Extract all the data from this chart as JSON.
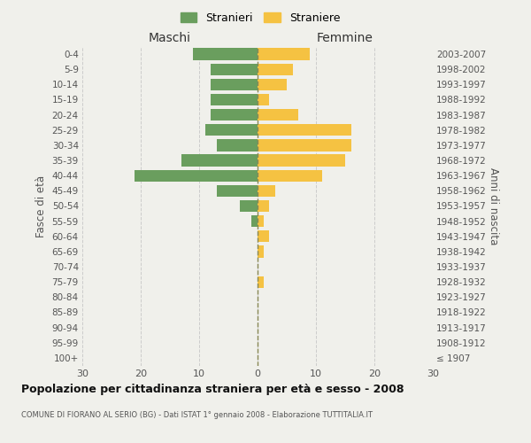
{
  "age_groups": [
    "100+",
    "95-99",
    "90-94",
    "85-89",
    "80-84",
    "75-79",
    "70-74",
    "65-69",
    "60-64",
    "55-59",
    "50-54",
    "45-49",
    "40-44",
    "35-39",
    "30-34",
    "25-29",
    "20-24",
    "15-19",
    "10-14",
    "5-9",
    "0-4"
  ],
  "birth_years": [
    "≤ 1907",
    "1908-1912",
    "1913-1917",
    "1918-1922",
    "1923-1927",
    "1928-1932",
    "1933-1937",
    "1938-1942",
    "1943-1947",
    "1948-1952",
    "1953-1957",
    "1958-1962",
    "1963-1967",
    "1968-1972",
    "1973-1977",
    "1978-1982",
    "1983-1987",
    "1988-1992",
    "1993-1997",
    "1998-2002",
    "2003-2007"
  ],
  "males": [
    0,
    0,
    0,
    0,
    0,
    0,
    0,
    0,
    0,
    1,
    3,
    7,
    21,
    13,
    7,
    9,
    8,
    8,
    8,
    8,
    11
  ],
  "females": [
    0,
    0,
    0,
    0,
    0,
    1,
    0,
    1,
    2,
    1,
    2,
    3,
    11,
    15,
    16,
    16,
    7,
    2,
    5,
    6,
    9
  ],
  "male_color": "#6a9e5e",
  "female_color": "#f5c242",
  "center_line_color": "#888855",
  "bg_color": "#f0f0eb",
  "grid_color": "#cccccc",
  "title": "Popolazione per cittadinanza straniera per età e sesso - 2008",
  "subtitle": "COMUNE DI FIORANO AL SERIO (BG) - Dati ISTAT 1° gennaio 2008 - Elaborazione TUTTITALIA.IT",
  "ylabel_left": "Fasce di età",
  "ylabel_right": "Anni di nascita",
  "xlabel_left": "Maschi",
  "xlabel_right": "Femmine",
  "legend_male": "Stranieri",
  "legend_female": "Straniere",
  "xlim": 30
}
